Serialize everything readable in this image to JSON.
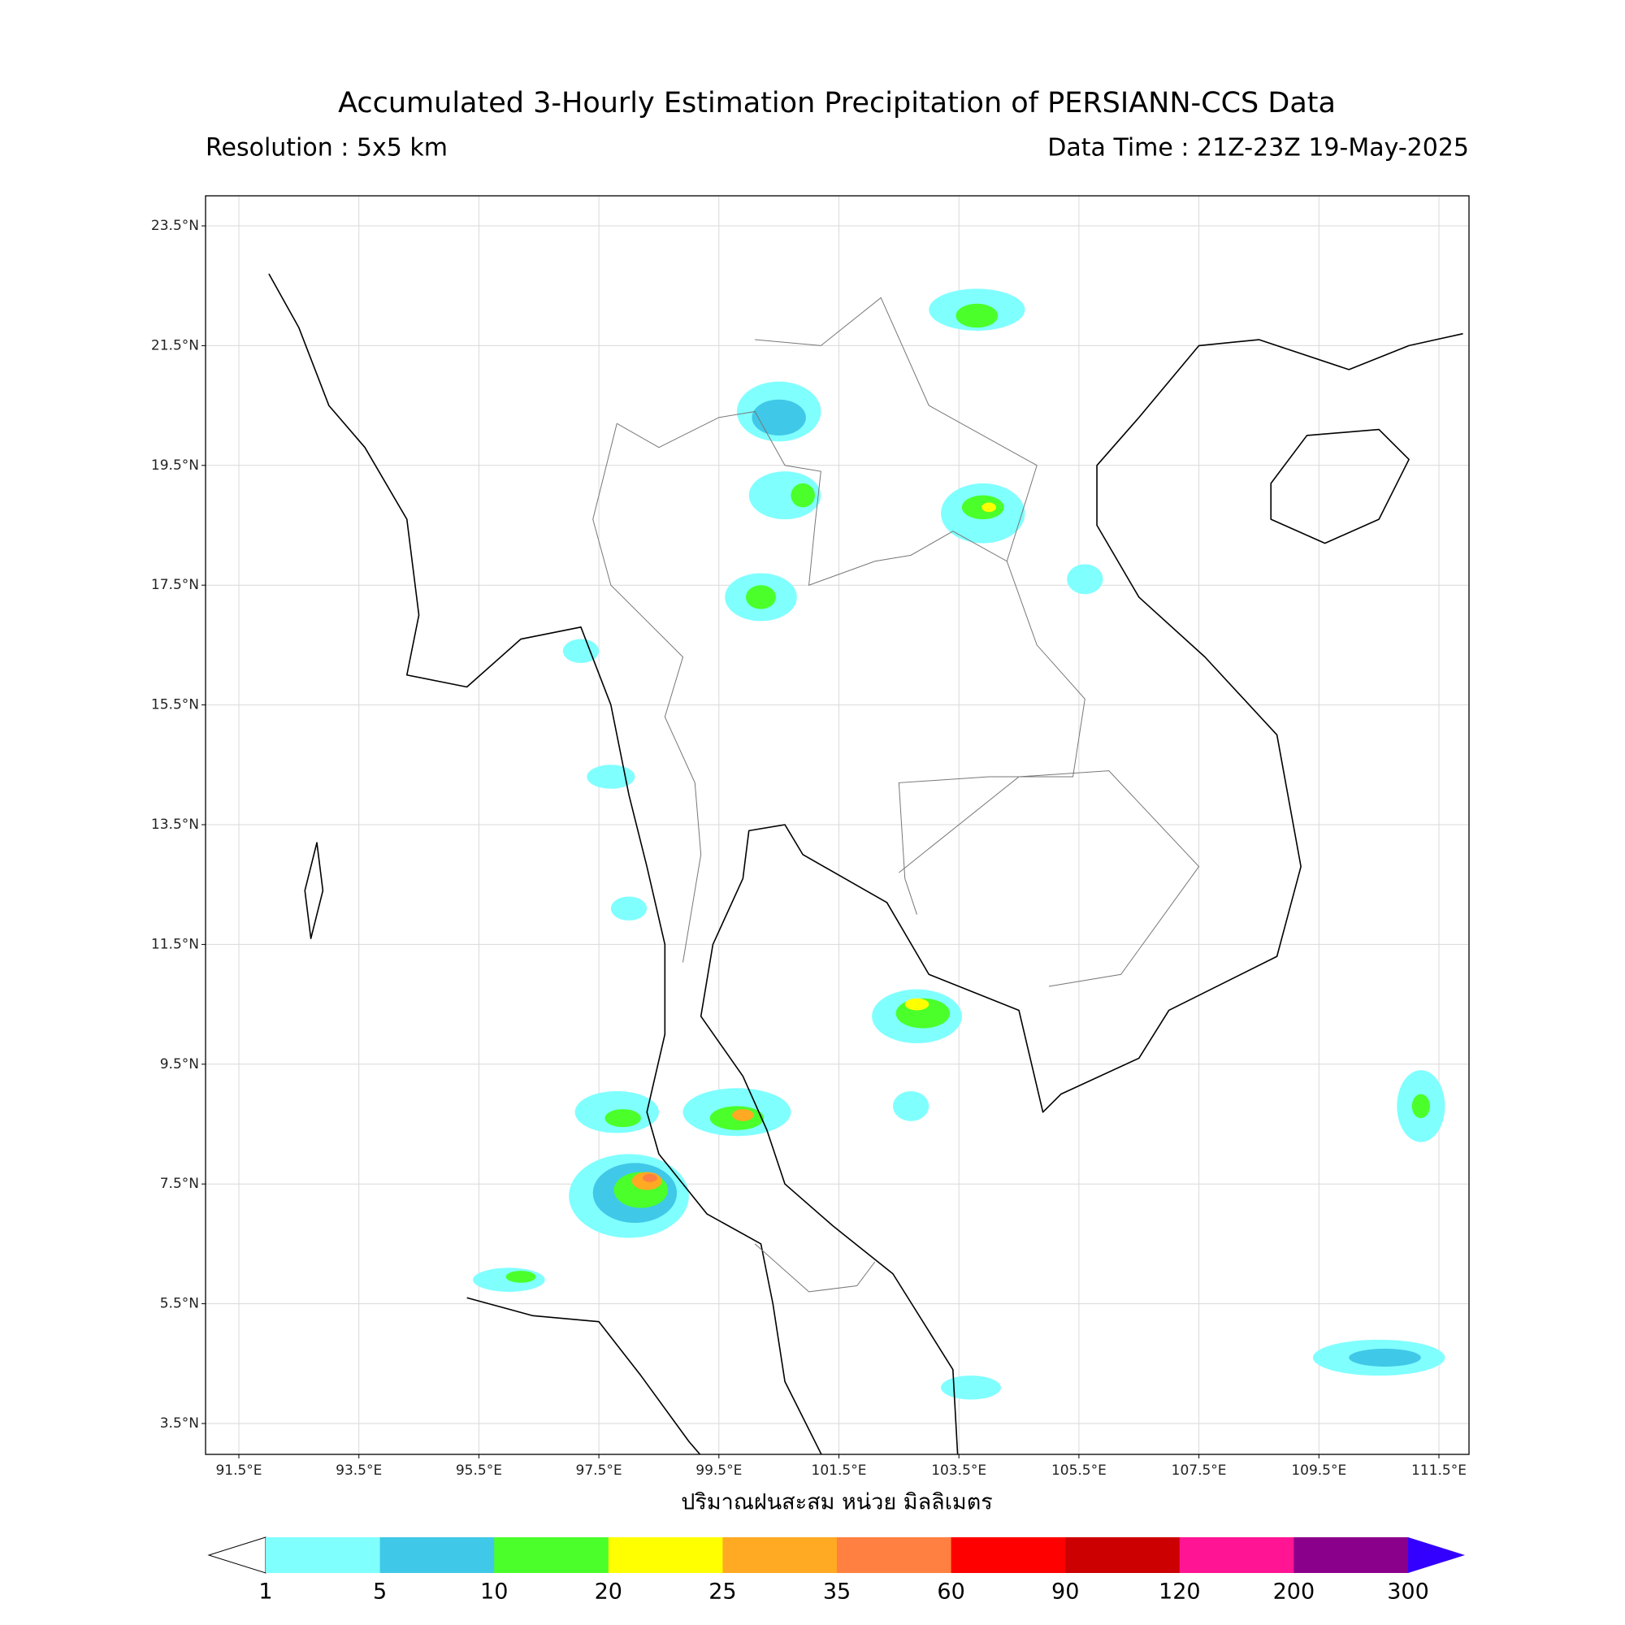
{
  "header": {
    "title": "Accumulated 3-Hourly Estimation Precipitation of PERSIANN-CCS Data",
    "resolution": "Resolution : 5x5 km",
    "data_time": "Data Time : 21Z-23Z 19-May-2025"
  },
  "map": {
    "lat_ticks": [
      "23.5°N",
      "21.5°N",
      "19.5°N",
      "17.5°N",
      "15.5°N",
      "13.5°N",
      "11.5°N",
      "9.5°N",
      "7.5°N",
      "5.5°N",
      "3.5°N"
    ],
    "lon_ticks": [
      "91.5°E",
      "93.5°E",
      "95.5°E",
      "97.5°E",
      "99.5°E",
      "101.5°E",
      "103.5°E",
      "105.5°E",
      "107.5°E",
      "109.5°E",
      "111.5°E"
    ],
    "x_label": "ปริมาณฝนสะสม หน่วย มิลลิเมตร"
  },
  "colorbar": {
    "levels": [
      1,
      5,
      10,
      20,
      25,
      35,
      60,
      90,
      120,
      200,
      300
    ],
    "colors": [
      "#ffffff",
      "#80ffff",
      "#40c8e8",
      "#4aff2a",
      "#ffff00",
      "#ffaa22",
      "#ff8040",
      "#ff0000",
      "#cc0000",
      "#ff1493",
      "#8b008b",
      "#3300ff"
    ]
  }
}
